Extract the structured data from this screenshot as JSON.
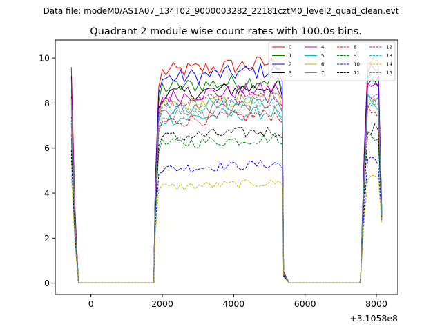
{
  "chart_data": {
    "type": "line",
    "suptitle": "Data file: modeM0/AS1A07_134T02_9000003282_22181cztM0_level2_quad_clean.evt",
    "title": "Quadrant 2 module wise count rates with 100.0s bins.",
    "xlabel": "",
    "ylabel": "",
    "x_offset_label": "+3.1058e8",
    "xlim": [
      -1000,
      8600
    ],
    "ylim": [
      -0.5,
      10.8
    ],
    "xticks": [
      0,
      2000,
      4000,
      6000,
      8000
    ],
    "xtick_labels": [
      "0",
      "2000",
      "4000",
      "6000",
      "8000"
    ],
    "yticks": [
      0,
      2,
      4,
      6,
      8,
      10
    ],
    "ytick_labels": [
      "0",
      "2",
      "4",
      "6",
      "8",
      "10"
    ],
    "grid": false,
    "legend_position": "top-right",
    "legend_columns": 4,
    "segments": [
      {
        "start": -550,
        "end": -350,
        "points": 3
      },
      {
        "start": 1800,
        "end": 5360,
        "points": 36
      },
      {
        "start": 5400,
        "end": 5550,
        "points": 2
      },
      {
        "start": 7560,
        "end": 8150,
        "points": 7
      }
    ],
    "series": [
      {
        "name": "0",
        "color": "#ff0000",
        "dash": "solid",
        "level": 9.7,
        "start_value": 9.6,
        "second_value": 3.5,
        "end_value": 3.0
      },
      {
        "name": "1",
        "color": "#008000",
        "dash": "solid",
        "level": 9.0,
        "start_value": 8.6,
        "second_value": 3.0,
        "end_value": 3.2
      },
      {
        "name": "2",
        "color": "#0000ff",
        "dash": "solid",
        "level": 9.4,
        "start_value": 9.2,
        "second_value": 3.2,
        "end_value": 3.3
      },
      {
        "name": "3",
        "color": "#000000",
        "dash": "solid",
        "level": 8.7,
        "start_value": 8.3,
        "second_value": 3.0,
        "end_value": 3.0
      },
      {
        "name": "4",
        "color": "#bf00bf",
        "dash": "solid",
        "level": 8.6,
        "start_value": 9.0,
        "second_value": 3.0,
        "end_value": 3.1
      },
      {
        "name": "5",
        "color": "#00bfbf",
        "dash": "solid",
        "level": 7.6,
        "start_value": 8.0,
        "second_value": 2.8,
        "end_value": 2.8
      },
      {
        "name": "6",
        "color": "#bfbf00",
        "dash": "solid",
        "level": 8.2,
        "start_value": 7.8,
        "second_value": 2.7,
        "end_value": 2.9
      },
      {
        "name": "7",
        "color": "#808080",
        "dash": "solid",
        "level": 8.0,
        "start_value": 8.2,
        "second_value": 2.9,
        "end_value": 3.1
      },
      {
        "name": "8",
        "color": "#ff0000",
        "dash": "dashed",
        "level": 7.5,
        "start_value": 6.6,
        "second_value": 2.6,
        "end_value": 2.9
      },
      {
        "name": "9",
        "color": "#008000",
        "dash": "dashed",
        "level": 6.5,
        "start_value": 6.4,
        "second_value": 2.4,
        "end_value": 3.0
      },
      {
        "name": "10",
        "color": "#0000ff",
        "dash": "dashed",
        "level": 5.4,
        "start_value": 5.6,
        "second_value": 2.1,
        "end_value": 2.8
      },
      {
        "name": "11",
        "color": "#000000",
        "dash": "dashed",
        "level": 6.8,
        "start_value": 5.9,
        "second_value": 2.3,
        "end_value": 2.9
      },
      {
        "name": "12",
        "color": "#bf00bf",
        "dash": "dashed",
        "level": 8.3,
        "start_value": 7.4,
        "second_value": 2.8,
        "end_value": 3.0
      },
      {
        "name": "13",
        "color": "#00bfbf",
        "dash": "dashed",
        "level": 8.1,
        "start_value": 7.0,
        "second_value": 2.7,
        "end_value": 3.0
      },
      {
        "name": "14",
        "color": "#bfbf00",
        "dash": "dashed",
        "level": 4.6,
        "start_value": 4.8,
        "second_value": 1.8,
        "end_value": 2.7
      },
      {
        "name": "15",
        "color": "#808080",
        "dash": "dashed",
        "level": 7.7,
        "start_value": 7.1,
        "second_value": 2.7,
        "end_value": 3.0
      }
    ]
  }
}
